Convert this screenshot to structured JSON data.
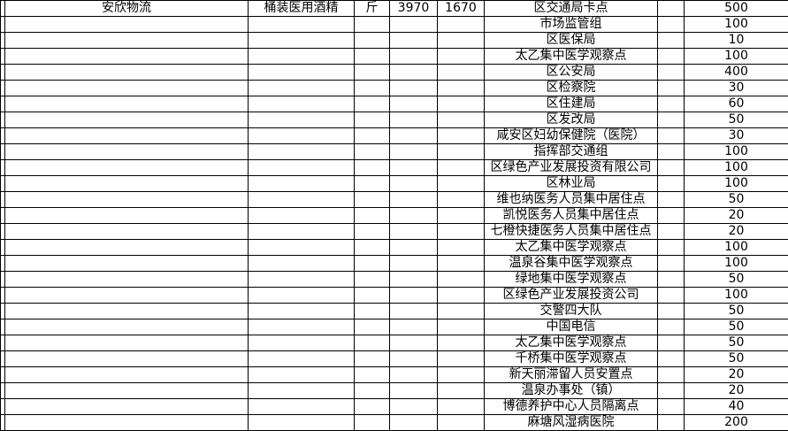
{
  "colors": {
    "grid_border": "#000000",
    "cell_background": "#ffffff",
    "text": "#000000"
  },
  "table": {
    "first_row": {
      "carrier": "安欣物流",
      "item": "桶装医用酒精",
      "unit": "斤",
      "qty_a": "3970",
      "qty_b": "1670"
    },
    "rows": [
      {
        "destination": "区交通局卡点",
        "amount": "500"
      },
      {
        "destination": "市场监管组",
        "amount": "100"
      },
      {
        "destination": "区医保局",
        "amount": "10"
      },
      {
        "destination": "太乙集中医学观察点",
        "amount": "100"
      },
      {
        "destination": "区公安局",
        "amount": "400"
      },
      {
        "destination": "区检察院",
        "amount": "30"
      },
      {
        "destination": "区住建局",
        "amount": "60"
      },
      {
        "destination": "区发改局",
        "amount": "50"
      },
      {
        "destination": "咸安区妇幼保健院（医院）",
        "amount": "30"
      },
      {
        "destination": "指挥部交通组",
        "amount": "100"
      },
      {
        "destination": "区绿色产业发展投资有限公司",
        "amount": "100"
      },
      {
        "destination": "区林业局",
        "amount": "100"
      },
      {
        "destination": "维也纳医务人员集中居住点",
        "amount": "50"
      },
      {
        "destination": "凯悦医务人员集中居住点",
        "amount": "20"
      },
      {
        "destination": "七橙快捷医务人员集中居住点",
        "amount": "20"
      },
      {
        "destination": "太乙集中医学观察点",
        "amount": "100"
      },
      {
        "destination": "温泉谷集中医学观察点",
        "amount": "100"
      },
      {
        "destination": "绿地集中医学观察点",
        "amount": "50"
      },
      {
        "destination": "区绿色产业发展投资公司",
        "amount": "100"
      },
      {
        "destination": "交警四大队",
        "amount": "50"
      },
      {
        "destination": "中国电信",
        "amount": "50"
      },
      {
        "destination": "太乙集中医学观察点",
        "amount": "50"
      },
      {
        "destination": "千桥集中医学观察点",
        "amount": "50"
      },
      {
        "destination": "新天丽滞留人员安置点",
        "amount": "20"
      },
      {
        "destination": "温泉办事处（镇）",
        "amount": "20"
      },
      {
        "destination": "博德养护中心人员隔离点",
        "amount": "40"
      },
      {
        "destination": "麻塘风湿病医院",
        "amount": "200"
      }
    ]
  }
}
